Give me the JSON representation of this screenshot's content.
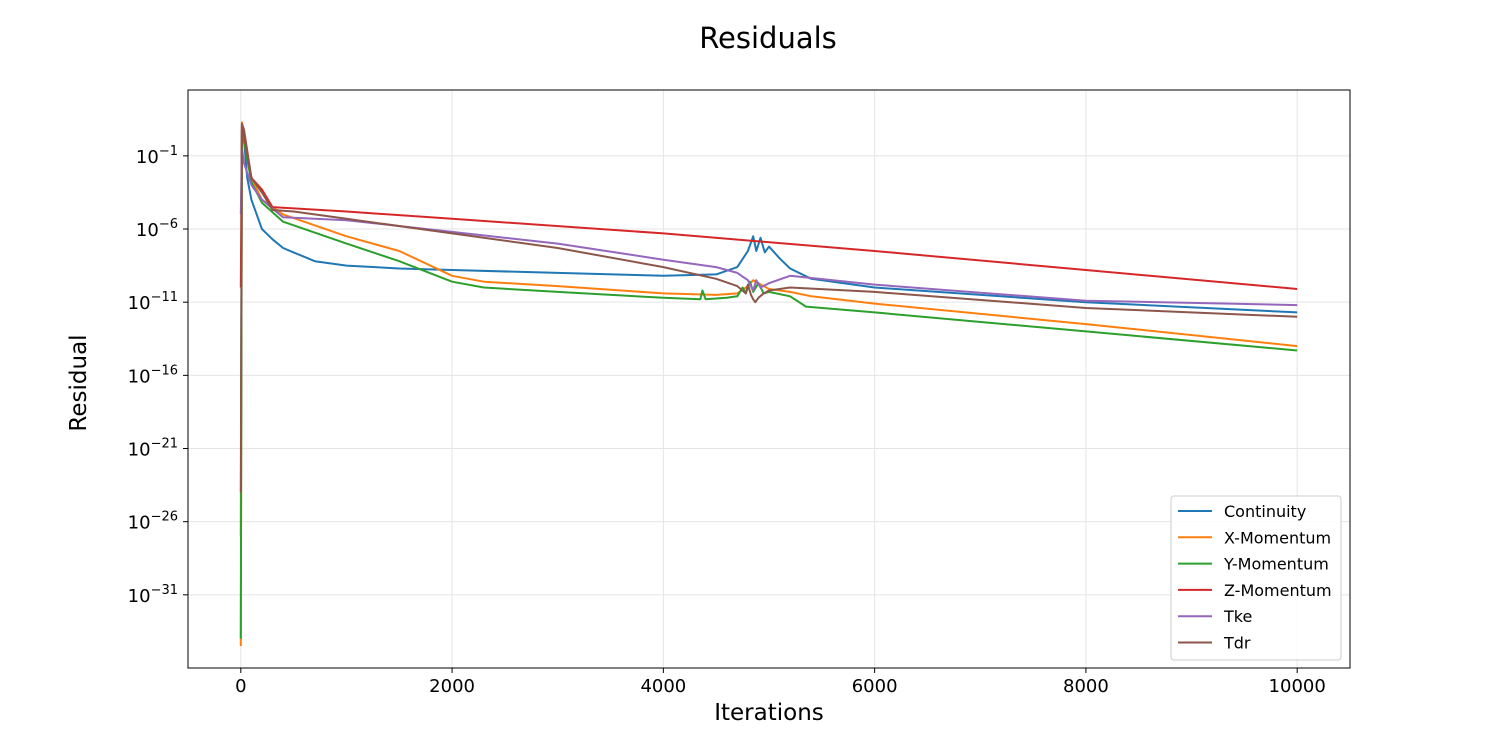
{
  "chart_data": {
    "type": "line",
    "title": "Residuals",
    "xlabel": "Iterations",
    "ylabel": "Residual",
    "y_scale": "log",
    "xlim": [
      -500,
      10500
    ],
    "ylim_exponent": [
      -36,
      3.5
    ],
    "x_ticks": [
      0,
      2000,
      4000,
      6000,
      8000,
      10000
    ],
    "y_tick_exponents": [
      -1,
      -6,
      -11,
      -16,
      -21,
      -26,
      -31
    ],
    "grid": true,
    "legend_position": "lower-right",
    "series": [
      {
        "name": "Continuity",
        "color": "#1f77b4",
        "points": [
          [
            0,
            -27
          ],
          [
            10,
            0.8
          ],
          [
            25,
            0.5
          ],
          [
            60,
            -2.5
          ],
          [
            100,
            -4
          ],
          [
            200,
            -6
          ],
          [
            300,
            -6.7
          ],
          [
            400,
            -7.3
          ],
          [
            500,
            -7.6
          ],
          [
            700,
            -8.2
          ],
          [
            1000,
            -8.5
          ],
          [
            1500,
            -8.7
          ],
          [
            2000,
            -8.8
          ],
          [
            3000,
            -9.0
          ],
          [
            4000,
            -9.2
          ],
          [
            4500,
            -9.1
          ],
          [
            4700,
            -8.6
          ],
          [
            4800,
            -7.5
          ],
          [
            4850,
            -6.5
          ],
          [
            4880,
            -7.5
          ],
          [
            4920,
            -6.6
          ],
          [
            4960,
            -7.6
          ],
          [
            5000,
            -7.2
          ],
          [
            5100,
            -8.0
          ],
          [
            5200,
            -8.7
          ],
          [
            5400,
            -9.4
          ],
          [
            6000,
            -10.0
          ],
          [
            8000,
            -11.0
          ],
          [
            10000,
            -11.7
          ]
        ]
      },
      {
        "name": "X-Momentum",
        "color": "#ff7f0e",
        "points": [
          [
            0,
            -34.5
          ],
          [
            10,
            1.3
          ],
          [
            30,
            0.2
          ],
          [
            100,
            -2.5
          ],
          [
            200,
            -4
          ],
          [
            400,
            -5
          ],
          [
            1000,
            -6.5
          ],
          [
            1500,
            -7.5
          ],
          [
            2000,
            -9.2
          ],
          [
            2300,
            -9.6
          ],
          [
            3000,
            -9.9
          ],
          [
            4000,
            -10.4
          ],
          [
            4500,
            -10.5
          ],
          [
            4700,
            -10.4
          ],
          [
            4800,
            -9.9
          ],
          [
            4850,
            -9.5
          ],
          [
            4900,
            -9.7
          ],
          [
            5000,
            -10.1
          ],
          [
            5200,
            -10.3
          ],
          [
            5400,
            -10.6
          ],
          [
            6000,
            -11.1
          ],
          [
            8000,
            -12.5
          ],
          [
            10000,
            -14.0
          ]
        ]
      },
      {
        "name": "Y-Momentum",
        "color": "#2ca02c",
        "points": [
          [
            0,
            -34
          ],
          [
            10,
            0.5
          ],
          [
            30,
            0
          ],
          [
            100,
            -2.8
          ],
          [
            200,
            -4.2
          ],
          [
            400,
            -5.5
          ],
          [
            1000,
            -7.0
          ],
          [
            1500,
            -8.2
          ],
          [
            2000,
            -9.6
          ],
          [
            2300,
            -10.0
          ],
          [
            3000,
            -10.3
          ],
          [
            4000,
            -10.7
          ],
          [
            4350,
            -10.8
          ],
          [
            4370,
            -10.2
          ],
          [
            4400,
            -10.8
          ],
          [
            4600,
            -10.7
          ],
          [
            4700,
            -10.6
          ],
          [
            4750,
            -10.0
          ],
          [
            4780,
            -10.4
          ],
          [
            4820,
            -9.6
          ],
          [
            4850,
            -10.3
          ],
          [
            4900,
            -9.7
          ],
          [
            4950,
            -10.4
          ],
          [
            5000,
            -10.3
          ],
          [
            5200,
            -10.6
          ],
          [
            5350,
            -11.3
          ],
          [
            6000,
            -11.7
          ],
          [
            8000,
            -13.0
          ],
          [
            10000,
            -14.3
          ]
        ]
      },
      {
        "name": "Z-Momentum",
        "color": "#d62728",
        "points": [
          [
            0,
            -10
          ],
          [
            10,
            1.0
          ],
          [
            30,
            0.5
          ],
          [
            100,
            -2.5
          ],
          [
            200,
            -3.3
          ],
          [
            300,
            -4.5
          ],
          [
            1000,
            -4.8
          ],
          [
            2000,
            -5.3
          ],
          [
            4000,
            -6.3
          ],
          [
            6000,
            -7.5
          ],
          [
            8000,
            -8.8
          ],
          [
            10000,
            -10.1
          ]
        ]
      },
      {
        "name": "Tke",
        "color": "#9467bd",
        "points": [
          [
            0,
            -5
          ],
          [
            10,
            -0.5
          ],
          [
            30,
            -1.5
          ],
          [
            100,
            -3
          ],
          [
            200,
            -4
          ],
          [
            400,
            -5.2
          ],
          [
            1000,
            -5.4
          ],
          [
            2000,
            -6.2
          ],
          [
            3000,
            -7.0
          ],
          [
            4000,
            -8.1
          ],
          [
            4500,
            -8.6
          ],
          [
            4700,
            -9.0
          ],
          [
            4800,
            -9.5
          ],
          [
            4850,
            -10.2
          ],
          [
            4880,
            -9.5
          ],
          [
            4920,
            -10.0
          ],
          [
            5000,
            -9.7
          ],
          [
            5200,
            -9.2
          ],
          [
            6000,
            -9.8
          ],
          [
            8000,
            -10.9
          ],
          [
            10000,
            -11.2
          ]
        ]
      },
      {
        "name": "Tdr",
        "color": "#8c564b",
        "points": [
          [
            0,
            -24
          ],
          [
            10,
            1.2
          ],
          [
            30,
            0.8
          ],
          [
            100,
            -2.5
          ],
          [
            200,
            -3.5
          ],
          [
            300,
            -4.7
          ],
          [
            500,
            -4.8
          ],
          [
            1000,
            -5.3
          ],
          [
            2000,
            -6.3
          ],
          [
            3000,
            -7.3
          ],
          [
            4000,
            -8.6
          ],
          [
            4500,
            -9.4
          ],
          [
            4700,
            -9.9
          ],
          [
            4780,
            -10.4
          ],
          [
            4800,
            -9.8
          ],
          [
            4830,
            -10.5
          ],
          [
            4850,
            -10.8
          ],
          [
            4870,
            -11.0
          ],
          [
            4900,
            -10.7
          ],
          [
            4950,
            -10.4
          ],
          [
            5000,
            -10.2
          ],
          [
            5200,
            -10.0
          ],
          [
            6000,
            -10.3
          ],
          [
            8000,
            -11.4
          ],
          [
            10000,
            -12.0
          ]
        ]
      }
    ]
  }
}
